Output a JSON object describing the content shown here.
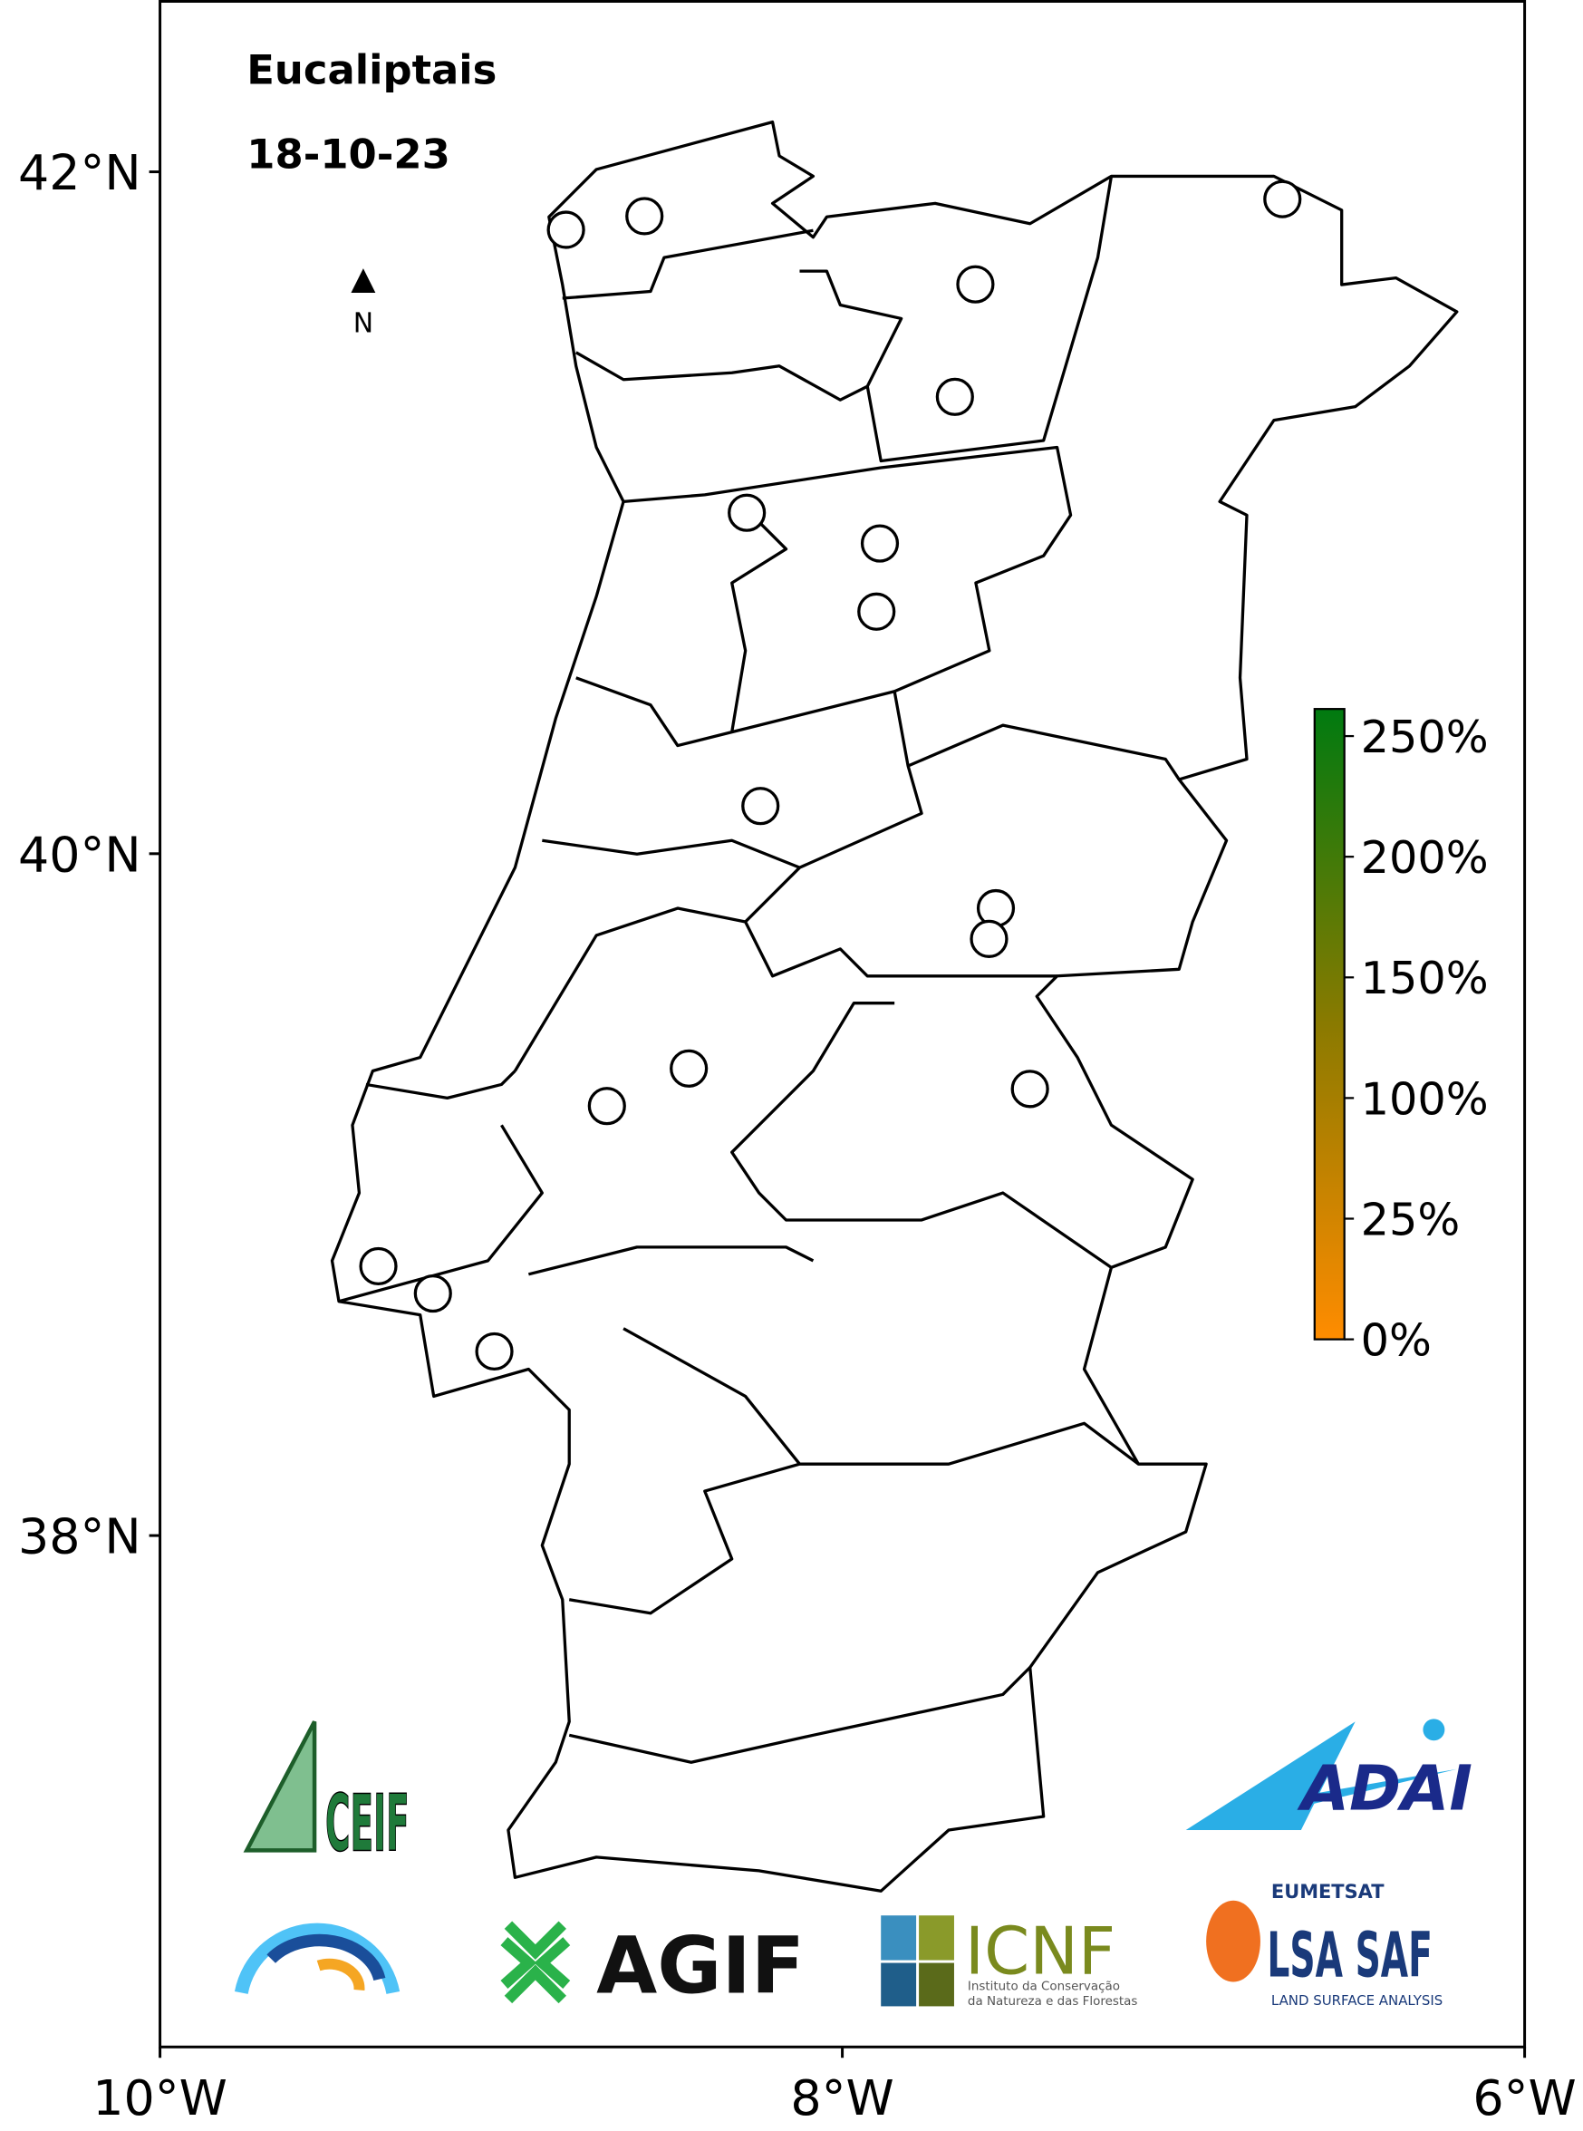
{
  "chart_data": {
    "type": "map",
    "title": "Eucaliptais",
    "subtitle": "18-10-23",
    "north_label": "N",
    "xlim": [
      -10,
      -6
    ],
    "ylim": [
      36.5,
      42.5
    ],
    "xticks": [
      {
        "value": -10,
        "label": "10°W"
      },
      {
        "value": -8,
        "label": "8°W"
      },
      {
        "value": -6,
        "label": "6°W"
      }
    ],
    "yticks": [
      {
        "value": 38,
        "label": "38°N"
      },
      {
        "value": 40,
        "label": "40°N"
      },
      {
        "value": 42,
        "label": "42°N"
      }
    ],
    "points": {
      "x": [
        -8.81,
        -8.58,
        -6.71,
        -7.61,
        -7.67,
        -8.28,
        -7.89,
        -7.9,
        -8.24,
        -7.55,
        -7.57,
        -8.45,
        -8.69,
        -7.45,
        -9.36,
        -9.2,
        -9.02
      ],
      "y": [
        41.83,
        41.87,
        41.92,
        41.67,
        41.34,
        41.0,
        40.91,
        40.71,
        40.14,
        39.84,
        39.75,
        39.37,
        39.26,
        39.31,
        38.79,
        38.71,
        38.54
      ]
    },
    "marker_edge_color": "#000000",
    "marker_fill": "#ffffff",
    "colorbar": {
      "colors": [
        "#ff8c00",
        "#8a7a00",
        "#007a10"
      ],
      "labels": [
        "0%",
        "25%",
        "100%",
        "150%",
        "200%",
        "250%"
      ]
    }
  },
  "logos": {
    "ceif": "CEIF",
    "adai": "ADAI",
    "agif": "AGIF",
    "icnf": "ICNF",
    "icnf_sub": [
      "Instituto da Conservação",
      "da Natureza e das Florestas"
    ],
    "eumetsat": "EUMETSAT",
    "lsasaf": "LSA SAF",
    "lsasaf_sub": "LAND SURFACE ANALYSIS"
  }
}
